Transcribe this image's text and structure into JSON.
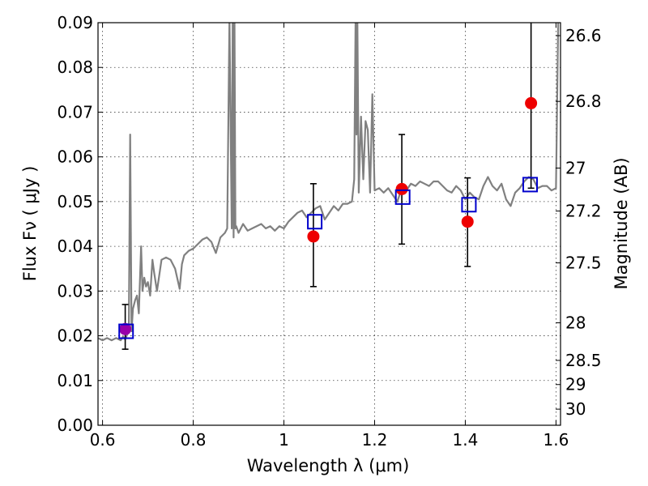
{
  "chart_data": {
    "type": "scatter",
    "title": "",
    "xlabel": "Wavelength  λ (μm)",
    "ylabel": "Flux  Fν  ( μJy )",
    "y2label": "Magnitude (AB)",
    "xlim": [
      0.59,
      1.61
    ],
    "ylim": [
      0.0,
      0.09
    ],
    "grid": true,
    "legend": "none",
    "xticks": [
      {
        "value": 0.6,
        "label": "0.6"
      },
      {
        "value": 0.8,
        "label": "0.8"
      },
      {
        "value": 1.0,
        "label": "1"
      },
      {
        "value": 1.2,
        "label": "1.2"
      },
      {
        "value": 1.4,
        "label": "1.4"
      },
      {
        "value": 1.6,
        "label": "1.6"
      }
    ],
    "yticks": [
      {
        "value": 0.0,
        "label": "0.00"
      },
      {
        "value": 0.01,
        "label": "0.01"
      },
      {
        "value": 0.02,
        "label": "0.02"
      },
      {
        "value": 0.03,
        "label": "0.03"
      },
      {
        "value": 0.04,
        "label": "0.04"
      },
      {
        "value": 0.05,
        "label": "0.05"
      },
      {
        "value": 0.06,
        "label": "0.06"
      },
      {
        "value": 0.07,
        "label": "0.07"
      },
      {
        "value": 0.08,
        "label": "0.08"
      },
      {
        "value": 0.09,
        "label": "0.09"
      }
    ],
    "y2ticks": [
      {
        "flux": 0.0871,
        "label": "26.6"
      },
      {
        "flux": 0.0724,
        "label": "26.8"
      },
      {
        "flux": 0.0575,
        "label": "27"
      },
      {
        "flux": 0.0479,
        "label": "27.2"
      },
      {
        "flux": 0.0363,
        "label": "27.5"
      },
      {
        "flux": 0.0229,
        "label": "28"
      },
      {
        "flux": 0.0145,
        "label": "28.5"
      },
      {
        "flux": 0.0091,
        "label": "29"
      },
      {
        "flux": 0.0036,
        "label": "30"
      }
    ],
    "series": [
      {
        "type": "line",
        "color": "#808080",
        "x": [
          0.59,
          0.6,
          0.61,
          0.62,
          0.63,
          0.64,
          0.645,
          0.65,
          0.655,
          0.658,
          0.661,
          0.664,
          0.667,
          0.672,
          0.676,
          0.68,
          0.685,
          0.688,
          0.692,
          0.696,
          0.7,
          0.705,
          0.71,
          0.714,
          0.72,
          0.73,
          0.74,
          0.75,
          0.76,
          0.77,
          0.775,
          0.78,
          0.79,
          0.8,
          0.81,
          0.82,
          0.83,
          0.84,
          0.85,
          0.86,
          0.87,
          0.875,
          0.88,
          0.885,
          0.887,
          0.889,
          0.891,
          0.893,
          0.895,
          0.9,
          0.91,
          0.92,
          0.93,
          0.94,
          0.95,
          0.96,
          0.97,
          0.98,
          0.99,
          1.0,
          1.01,
          1.02,
          1.03,
          1.04,
          1.05,
          1.06,
          1.07,
          1.08,
          1.09,
          1.1,
          1.11,
          1.12,
          1.13,
          1.14,
          1.15,
          1.155,
          1.158,
          1.16,
          1.162,
          1.165,
          1.17,
          1.175,
          1.18,
          1.185,
          1.19,
          1.195,
          1.2,
          1.21,
          1.22,
          1.23,
          1.24,
          1.25,
          1.26,
          1.27,
          1.28,
          1.29,
          1.3,
          1.31,
          1.32,
          1.33,
          1.34,
          1.35,
          1.36,
          1.37,
          1.38,
          1.39,
          1.4,
          1.41,
          1.42,
          1.43,
          1.44,
          1.45,
          1.46,
          1.47,
          1.48,
          1.49,
          1.5,
          1.51,
          1.52,
          1.53,
          1.54,
          1.55,
          1.56,
          1.57,
          1.58,
          1.59,
          1.6,
          1.605,
          1.61
        ],
        "y": [
          0.0195,
          0.019,
          0.0195,
          0.019,
          0.0195,
          0.019,
          0.0198,
          0.0192,
          0.0205,
          0.023,
          0.065,
          0.021,
          0.026,
          0.028,
          0.029,
          0.025,
          0.04,
          0.03,
          0.033,
          0.031,
          0.032,
          0.029,
          0.037,
          0.034,
          0.03,
          0.037,
          0.0375,
          0.037,
          0.035,
          0.0305,
          0.036,
          0.038,
          0.039,
          0.0395,
          0.0405,
          0.0415,
          0.042,
          0.041,
          0.0385,
          0.042,
          0.043,
          0.044,
          0.091,
          0.044,
          0.091,
          0.042,
          0.091,
          0.044,
          0.0445,
          0.043,
          0.045,
          0.0435,
          0.044,
          0.0445,
          0.045,
          0.044,
          0.0445,
          0.0435,
          0.0445,
          0.044,
          0.0455,
          0.0465,
          0.0475,
          0.048,
          0.0465,
          0.0475,
          0.0485,
          0.049,
          0.046,
          0.0475,
          0.049,
          0.048,
          0.0495,
          0.0495,
          0.05,
          0.055,
          0.091,
          0.065,
          0.091,
          0.052,
          0.069,
          0.055,
          0.068,
          0.066,
          0.052,
          0.074,
          0.0525,
          0.053,
          0.052,
          0.053,
          0.0515,
          0.05,
          0.053,
          0.0525,
          0.054,
          0.0535,
          0.0545,
          0.054,
          0.0535,
          0.0545,
          0.0545,
          0.0535,
          0.0525,
          0.052,
          0.0535,
          0.0525,
          0.0505,
          0.052,
          0.051,
          0.0505,
          0.0535,
          0.0555,
          0.0535,
          0.0525,
          0.054,
          0.0505,
          0.049,
          0.052,
          0.053,
          0.0545,
          0.0555,
          0.055,
          0.053,
          0.0535,
          0.0535,
          0.0525,
          0.053,
          0.091,
          0.091
        ]
      },
      {
        "type": "scatter",
        "marker": "circle",
        "color": "#ee0000",
        "x": [
          0.65,
          1.065,
          1.26,
          1.405,
          1.545
        ],
        "y": [
          0.0215,
          0.0422,
          0.0528,
          0.0455,
          0.072
        ]
      },
      {
        "type": "errorbar",
        "color": "#000000",
        "x": [
          0.65,
          1.065,
          1.26,
          1.405,
          1.545
        ],
        "ylow": [
          0.017,
          0.031,
          0.0405,
          0.0355,
          0.053
        ],
        "yhigh": [
          0.027,
          0.054,
          0.065,
          0.0553,
          0.09
        ]
      },
      {
        "type": "scatter",
        "marker": "square-open",
        "color": "#0000cc",
        "x": [
          0.652,
          1.068,
          1.262,
          1.408,
          1.543
        ],
        "y": [
          0.021,
          0.0455,
          0.051,
          0.0493,
          0.0538
        ]
      }
    ]
  }
}
